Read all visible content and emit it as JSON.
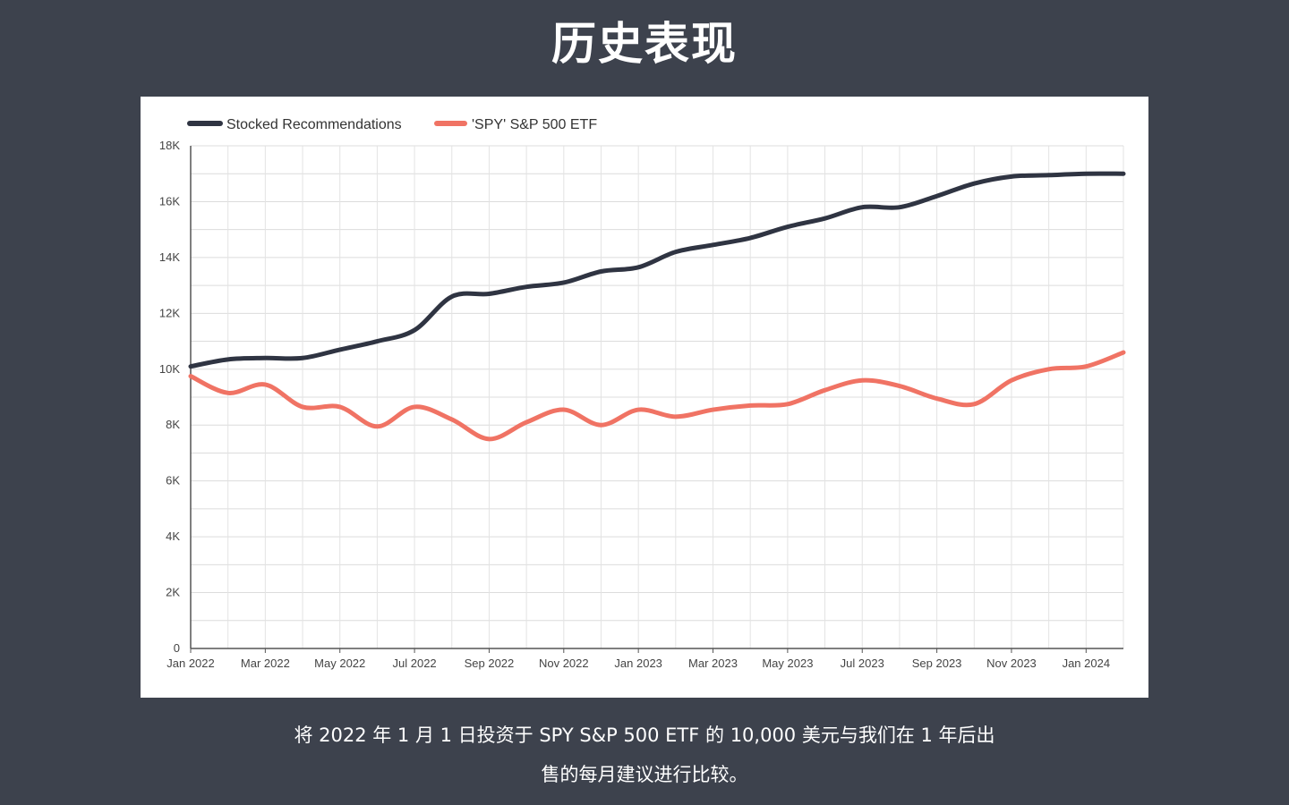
{
  "page": {
    "title": "历史表现",
    "caption": "将 2022 年 1 月 1 日投资于 SPY S&P 500 ETF 的 10,000 美元与我们在 1 年后出售的每月建议进行比较。"
  },
  "colors": {
    "background": "#3d424d",
    "series_stocked": "#2f3442",
    "series_spy": "#f07364",
    "grid": "#dddddd"
  },
  "chart_data": {
    "type": "line",
    "title": "",
    "xlabel": "",
    "ylabel": "",
    "legend_position": "top-left",
    "grid": true,
    "ylim": [
      0,
      18000
    ],
    "y_ticks": [
      0,
      2000,
      4000,
      6000,
      8000,
      10000,
      12000,
      14000,
      16000,
      18000
    ],
    "y_tick_labels": [
      "0",
      "2K",
      "4K",
      "6K",
      "8K",
      "10K",
      "12K",
      "14K",
      "16K",
      "18K"
    ],
    "x": [
      "Jan 2022",
      "Feb 2022",
      "Mar 2022",
      "Apr 2022",
      "May 2022",
      "Jun 2022",
      "Jul 2022",
      "Aug 2022",
      "Sep 2022",
      "Oct 2022",
      "Nov 2022",
      "Dec 2022",
      "Jan 2023",
      "Feb 2023",
      "Mar 2023",
      "Apr 2023",
      "May 2023",
      "Jun 2023",
      "Jul 2023",
      "Aug 2023",
      "Sep 2023",
      "Oct 2023",
      "Nov 2023",
      "Dec 2023",
      "Jan 2024",
      "Feb 2024"
    ],
    "x_tick_labels": [
      "Jan 2022",
      "Mar 2022",
      "May 2022",
      "Jul 2022",
      "Sep 2022",
      "Nov 2022",
      "Jan 2023",
      "Mar 2023",
      "May 2023",
      "Jul 2023",
      "Sep 2023",
      "Nov 2023",
      "Jan 2024"
    ],
    "series": [
      {
        "name": "Stocked Recommendations",
        "color": "#2f3442",
        "values": [
          10100,
          10350,
          10400,
          10400,
          10700,
          11000,
          11400,
          12600,
          12700,
          12950,
          13100,
          13500,
          13650,
          14200,
          14450,
          14700,
          15100,
          15400,
          15800,
          15800,
          16200,
          16650,
          16900,
          16950,
          17000,
          17000
        ]
      },
      {
        "name": "'SPY' S&P 500 ETF",
        "color": "#f07364",
        "values": [
          9750,
          9150,
          9450,
          8650,
          8650,
          7950,
          8650,
          8200,
          7500,
          8100,
          8550,
          8000,
          8550,
          8300,
          8550,
          8700,
          8750,
          9250,
          9600,
          9400,
          8950,
          8750,
          9600,
          10000,
          10100,
          10600
        ]
      }
    ]
  }
}
